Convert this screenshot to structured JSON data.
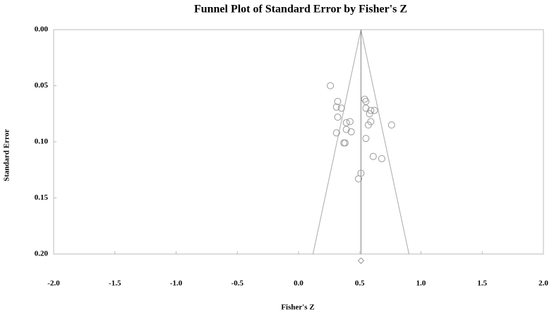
{
  "chart_data": {
    "type": "scatter",
    "title": "Funnel Plot of Standard Error by Fisher's Z",
    "x_label": "Fisher's Z",
    "y_label": "Standard Error",
    "xlim": [
      -2,
      2
    ],
    "ylim": [
      0,
      0.2
    ],
    "y_inverted": true,
    "xticks": [
      {
        "value": -2,
        "label": "-2.0"
      },
      -1.5,
      {
        "value": -1,
        "label": "-1.0"
      },
      -0.5,
      {
        "value": 0,
        "label": "0.0"
      },
      0.5,
      {
        "value": 1,
        "label": "1.0"
      },
      1.5,
      {
        "value": 2,
        "label": "2.0"
      }
    ],
    "yticks": [
      {
        "value": 0,
        "label": "0.00"
      },
      0.05,
      {
        "value": 0.1,
        "label": "0.10"
      },
      0.15,
      {
        "value": 0.2,
        "label": "0.20"
      }
    ],
    "x": [
      0.26,
      0.54,
      0.55,
      0.32,
      0.31,
      0.35,
      0.55,
      0.59,
      0.62,
      0.58,
      0.32,
      0.76,
      0.59,
      0.57,
      0.42,
      0.39,
      0.39,
      0.43,
      0.31,
      0.55,
      0.38,
      0.37,
      0.61,
      0.68,
      0.51,
      0.49
    ],
    "y": [
      0.05,
      0.062,
      0.064,
      0.064,
      0.069,
      0.07,
      0.07,
      0.072,
      0.072,
      0.075,
      0.078,
      0.085,
      0.082,
      0.085,
      0.082,
      0.083,
      0.089,
      0.091,
      0.092,
      0.097,
      0.101,
      0.101,
      0.113,
      0.115,
      0.128,
      0.133
    ],
    "color": "#999999",
    "combined_effect": {
      "x": 0.51,
      "y": 0.206
    },
    "funnel": {
      "apex": [
        0.51,
        0
      ],
      "left": [
        0.118,
        0.2
      ],
      "right": [
        0.902,
        0.2
      ]
    }
  }
}
